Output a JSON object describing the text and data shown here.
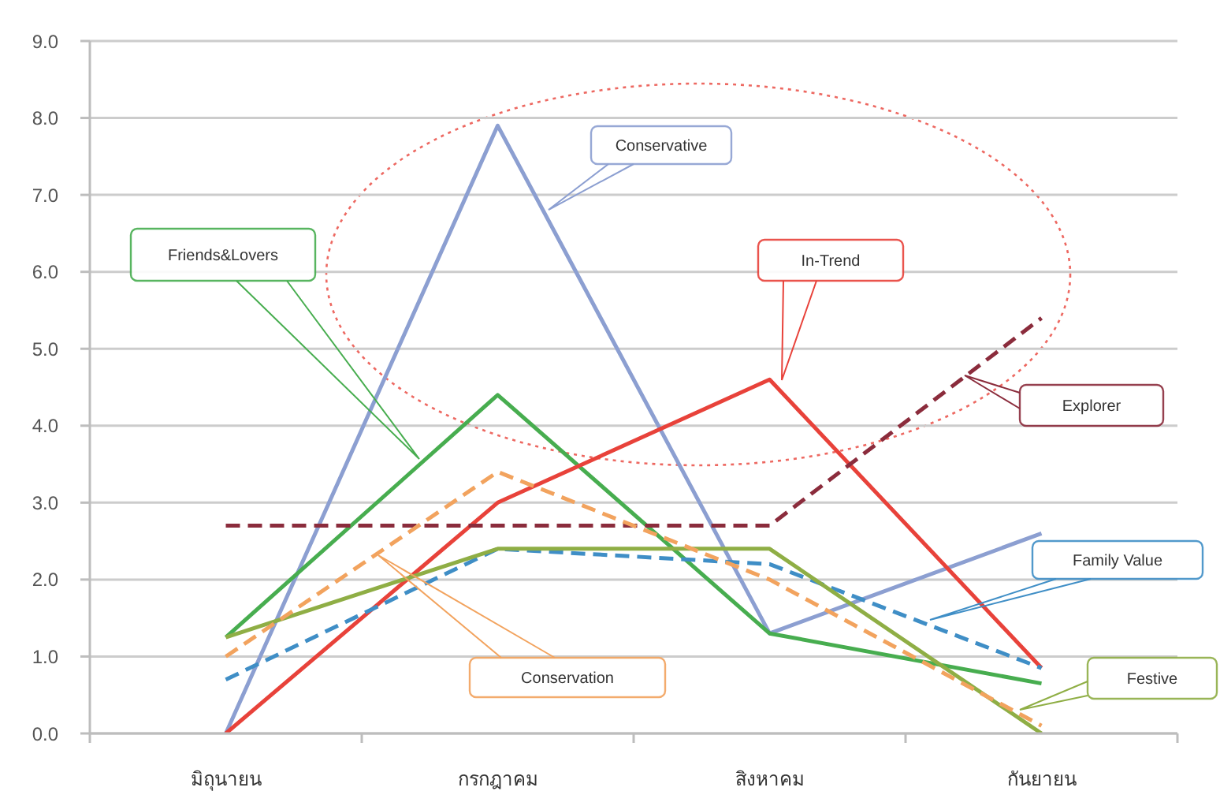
{
  "chart_data": {
    "type": "line",
    "categories": [
      "มิถุนายน",
      "กรกฎาคม",
      "สิงหาคม",
      "กันยายน"
    ],
    "series": [
      {
        "name": "Conservative",
        "color": "#8c9fd1",
        "values": [
          0.0,
          7.9,
          1.3,
          2.6
        ],
        "line_style": "solid"
      },
      {
        "name": "Friends&Lovers",
        "color": "#47ad4f",
        "values": [
          1.25,
          4.4,
          1.3,
          0.65
        ],
        "line_style": "solid"
      },
      {
        "name": "In-Trend",
        "color": "#e8423a",
        "values": [
          0.0,
          3.0,
          4.6,
          0.85
        ],
        "line_style": "solid"
      },
      {
        "name": "Explorer",
        "color": "#8b2c3c",
        "values": [
          2.7,
          2.7,
          2.7,
          5.4
        ],
        "line_style": "dashed"
      },
      {
        "name": "Family Value",
        "color": "#3f8ec6",
        "values": [
          0.7,
          2.4,
          2.2,
          0.85
        ],
        "line_style": "dashed"
      },
      {
        "name": "Festive",
        "color": "#8fae45",
        "values": [
          1.25,
          2.4,
          2.4,
          0.0
        ],
        "line_style": "solid"
      },
      {
        "name": "Conservation",
        "color": "#f2a35e",
        "values": [
          1.0,
          3.4,
          2.0,
          0.1
        ],
        "line_style": "dashed"
      }
    ],
    "ylim": [
      0,
      9
    ],
    "yticks": [
      {
        "value": 0,
        "label": "0.0"
      },
      {
        "value": 1,
        "label": "1.0"
      },
      {
        "value": 2,
        "label": "2.0"
      },
      {
        "value": 3,
        "label": "3.0"
      },
      {
        "value": 4,
        "label": "4.0"
      },
      {
        "value": 5,
        "label": "5.0"
      },
      {
        "value": 6,
        "label": "6.0"
      },
      {
        "value": 7,
        "label": "7.0"
      },
      {
        "value": 8,
        "label": "8.0"
      },
      {
        "value": 9,
        "label": "9.0"
      }
    ],
    "grid": "y",
    "legend": false,
    "marker": "none"
  }
}
